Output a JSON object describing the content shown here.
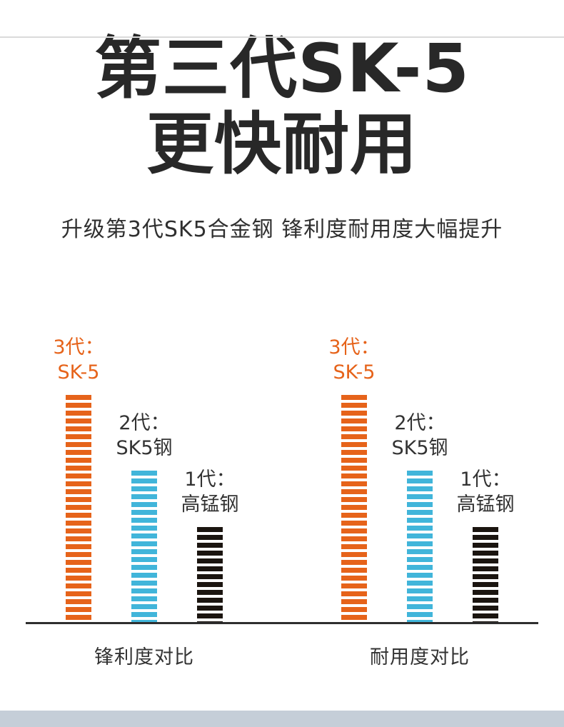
{
  "page": {
    "title_line1": "第三代SK-5",
    "title_line2": "更快耐用",
    "subtitle": "升级第3代SK5合金钢 锋利度耐用度大幅提升"
  },
  "colors": {
    "orange": "#e6631a",
    "blue": "#41b5da",
    "black": "#1b1510",
    "title_text": "#282828",
    "baseline": "#2e2e2e",
    "footer_strip": "#c5ced8"
  },
  "chart_data": [
    {
      "type": "bar",
      "title": "锋利度对比",
      "categories": [
        "3代：SK-5",
        "2代：SK5钢",
        "1代：高锰钢"
      ],
      "values": [
        100,
        67,
        42
      ],
      "ylim": [
        0,
        100
      ],
      "bar_colors": [
        "#e6631a",
        "#41b5da",
        "#1b1510"
      ],
      "grid": false,
      "legend_position": "none",
      "xlabel": "",
      "ylabel": ""
    },
    {
      "type": "bar",
      "title": "耐用度对比",
      "categories": [
        "3代：SK-5",
        "2代：SK5钢",
        "1代：高锰钢"
      ],
      "values": [
        100,
        67,
        42
      ],
      "ylim": [
        0,
        100
      ],
      "bar_colors": [
        "#e6631a",
        "#41b5da",
        "#1b1510"
      ],
      "grid": false,
      "legend_position": "none",
      "xlabel": "",
      "ylabel": ""
    }
  ],
  "charts": [
    {
      "caption": "锋利度对比",
      "bars": [
        {
          "label_line1": "3代：",
          "label_line2": "SK-5",
          "css": "--label-c:#e6631a;--bar-c:#e6631a;--bar-h:318px"
        },
        {
          "label_line1": "2代：",
          "label_line2": "SK5钢",
          "css": "--label-c:#333333;--bar-c:#41b5da;--bar-h:212px"
        },
        {
          "label_line1": "1代：",
          "label_line2": "高锰钢",
          "css": "--label-c:#333333;--bar-c:#1b1510;--bar-h:133px"
        }
      ]
    },
    {
      "caption": "耐用度对比",
      "bars": [
        {
          "label_line1": "3代：",
          "label_line2": "SK-5",
          "css": "--label-c:#e6631a;--bar-c:#e6631a;--bar-h:318px"
        },
        {
          "label_line1": "2代：",
          "label_line2": "SK5钢",
          "css": "--label-c:#333333;--bar-c:#41b5da;--bar-h:212px"
        },
        {
          "label_line1": "1代：",
          "label_line2": "高锰钢",
          "css": "--label-c:#333333;--bar-c:#1b1510;--bar-h:133px"
        }
      ]
    }
  ]
}
